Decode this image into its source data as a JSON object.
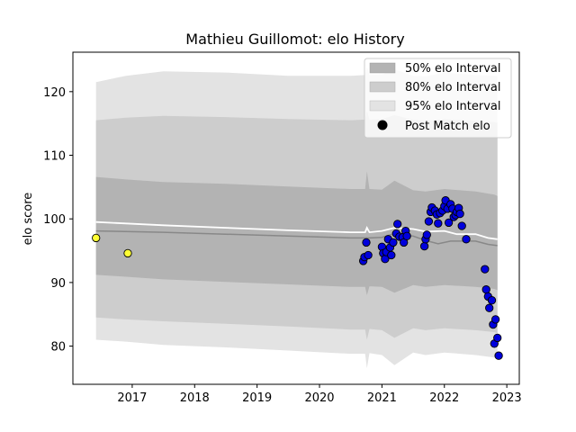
{
  "chart_data": {
    "type": "scatter",
    "title": "Mathieu Guillomot: elo History",
    "xlabel": "",
    "ylabel": "elo score",
    "xlim": [
      2016.05,
      2023.2
    ],
    "ylim": [
      74.0,
      126.2
    ],
    "x_ticks": [
      2017,
      2018,
      2019,
      2020,
      2021,
      2022,
      2023
    ],
    "y_ticks": [
      80,
      90,
      100,
      110,
      120
    ],
    "legend": {
      "placement": "top-right",
      "entries": [
        "50% elo Interval",
        "80% elo Interval",
        "95% elo Interval",
        "Post Match elo"
      ]
    },
    "colors": {
      "band95": "#e3e3e3",
      "band80": "#cdcdcd",
      "band50": "#b3b3b3",
      "mean_line": "#ffffff",
      "median_line": "#888888",
      "point_highlight": "#ffff33",
      "point_regular": "#0000dd",
      "point_edge": "#000000"
    },
    "series": [
      {
        "name": "95% elo Interval",
        "x": [
          2016.42,
          2016.9,
          2017.5,
          2018.5,
          2019.5,
          2020.5,
          2020.73,
          2020.76,
          2020.8,
          2021.0,
          2021.2,
          2021.5,
          2021.7,
          2022.0,
          2022.5,
          2022.8,
          2022.85
        ],
        "upper": [
          121.5,
          122.5,
          123.2,
          123.0,
          122.5,
          122.5,
          122.6,
          124.0,
          122.6,
          122.7,
          123.5,
          122.5,
          122.4,
          123.0,
          122.6,
          122.5,
          122.4
        ],
        "lower": [
          81.0,
          80.7,
          80.2,
          79.8,
          79.3,
          78.8,
          78.8,
          76.5,
          78.9,
          78.6,
          77.0,
          79.0,
          78.6,
          79.0,
          78.6,
          78.2,
          78.0
        ]
      },
      {
        "name": "80% elo Interval",
        "x": [
          2016.42,
          2016.9,
          2017.5,
          2018.5,
          2019.5,
          2020.5,
          2020.73,
          2020.76,
          2020.8,
          2021.0,
          2021.2,
          2021.5,
          2021.7,
          2022.0,
          2022.5,
          2022.8,
          2022.85
        ],
        "upper": [
          115.5,
          115.9,
          116.2,
          116.0,
          115.7,
          115.5,
          115.6,
          117.0,
          115.6,
          115.7,
          116.3,
          115.6,
          115.4,
          115.7,
          115.4,
          115.2,
          115.1
        ],
        "lower": [
          84.5,
          84.2,
          83.9,
          83.5,
          83.1,
          82.6,
          82.6,
          81.0,
          82.7,
          82.5,
          81.3,
          82.8,
          82.5,
          82.8,
          82.5,
          82.2,
          82.0
        ]
      },
      {
        "name": "50% elo Interval",
        "x": [
          2016.42,
          2016.9,
          2017.5,
          2018.5,
          2019.5,
          2020.5,
          2020.73,
          2020.76,
          2020.8,
          2021.0,
          2021.2,
          2021.5,
          2021.7,
          2022.0,
          2022.5,
          2022.8,
          2022.85
        ],
        "upper": [
          106.6,
          106.2,
          105.8,
          105.5,
          105.1,
          104.7,
          104.7,
          107.5,
          104.7,
          104.6,
          106.0,
          104.5,
          104.3,
          104.7,
          104.3,
          103.8,
          103.6
        ],
        "lower": [
          91.2,
          90.9,
          90.5,
          90.1,
          89.7,
          89.3,
          89.3,
          88.0,
          89.4,
          89.3,
          88.4,
          89.6,
          89.3,
          89.6,
          89.3,
          89.0,
          88.8
        ]
      },
      {
        "name": "mean",
        "x": [
          2016.42,
          2017.5,
          2018.5,
          2019.5,
          2020.5,
          2020.73,
          2020.76,
          2020.8,
          2021.0,
          2021.2,
          2021.5,
          2021.7,
          2022.0,
          2022.2,
          2022.5,
          2022.7,
          2022.85
        ],
        "values": [
          99.5,
          99.0,
          98.6,
          98.2,
          97.9,
          97.9,
          98.6,
          97.9,
          98.1,
          98.6,
          98.4,
          98.0,
          98.1,
          97.6,
          97.6,
          97.0,
          96.8
        ]
      },
      {
        "name": "median",
        "x": [
          2016.42,
          2017.5,
          2018.5,
          2019.5,
          2020.5,
          2020.8,
          2021.0,
          2021.2,
          2021.5,
          2021.7,
          2021.9,
          2022.1,
          2022.5,
          2022.7,
          2022.85
        ],
        "values": [
          98.1,
          97.9,
          97.6,
          97.3,
          97.0,
          97.0,
          97.1,
          97.7,
          97.3,
          96.6,
          96.1,
          96.5,
          96.5,
          96.0,
          95.8
        ]
      },
      {
        "name": "Post Match elo",
        "highlight": [
          [
            2016.42,
            97.0
          ],
          [
            2016.93,
            94.6
          ]
        ],
        "points": [
          [
            2020.7,
            93.4
          ],
          [
            2020.72,
            94.0
          ],
          [
            2020.75,
            96.3
          ],
          [
            2020.78,
            94.3
          ],
          [
            2021.0,
            95.6
          ],
          [
            2021.02,
            94.6
          ],
          [
            2021.05,
            93.7
          ],
          [
            2021.07,
            94.8
          ],
          [
            2021.1,
            96.8
          ],
          [
            2021.13,
            95.5
          ],
          [
            2021.15,
            94.3
          ],
          [
            2021.18,
            96.3
          ],
          [
            2021.23,
            97.7
          ],
          [
            2021.25,
            99.2
          ],
          [
            2021.28,
            97.2
          ],
          [
            2021.33,
            97.1
          ],
          [
            2021.35,
            96.3
          ],
          [
            2021.38,
            98.1
          ],
          [
            2021.4,
            97.3
          ],
          [
            2021.68,
            95.7
          ],
          [
            2021.7,
            96.8
          ],
          [
            2021.72,
            97.5
          ],
          [
            2021.75,
            99.6
          ],
          [
            2021.78,
            101.1
          ],
          [
            2021.8,
            101.8
          ],
          [
            2021.85,
            101.3
          ],
          [
            2021.88,
            100.7
          ],
          [
            2021.9,
            99.3
          ],
          [
            2021.93,
            100.9
          ],
          [
            2021.97,
            101.3
          ],
          [
            2022.0,
            102.0
          ],
          [
            2022.02,
            102.9
          ],
          [
            2022.05,
            101.6
          ],
          [
            2022.07,
            99.4
          ],
          [
            2022.1,
            102.3
          ],
          [
            2022.13,
            101.6
          ],
          [
            2022.15,
            100.3
          ],
          [
            2022.18,
            100.6
          ],
          [
            2022.2,
            101.1
          ],
          [
            2022.23,
            101.7
          ],
          [
            2022.25,
            100.8
          ],
          [
            2022.28,
            98.9
          ],
          [
            2022.35,
            96.8
          ],
          [
            2022.65,
            92.1
          ],
          [
            2022.67,
            88.9
          ],
          [
            2022.7,
            87.8
          ],
          [
            2022.72,
            86.0
          ],
          [
            2022.76,
            87.2
          ],
          [
            2022.78,
            83.4
          ],
          [
            2022.8,
            80.4
          ],
          [
            2022.82,
            84.2
          ],
          [
            2022.85,
            81.3
          ],
          [
            2022.87,
            78.5
          ]
        ]
      }
    ]
  }
}
